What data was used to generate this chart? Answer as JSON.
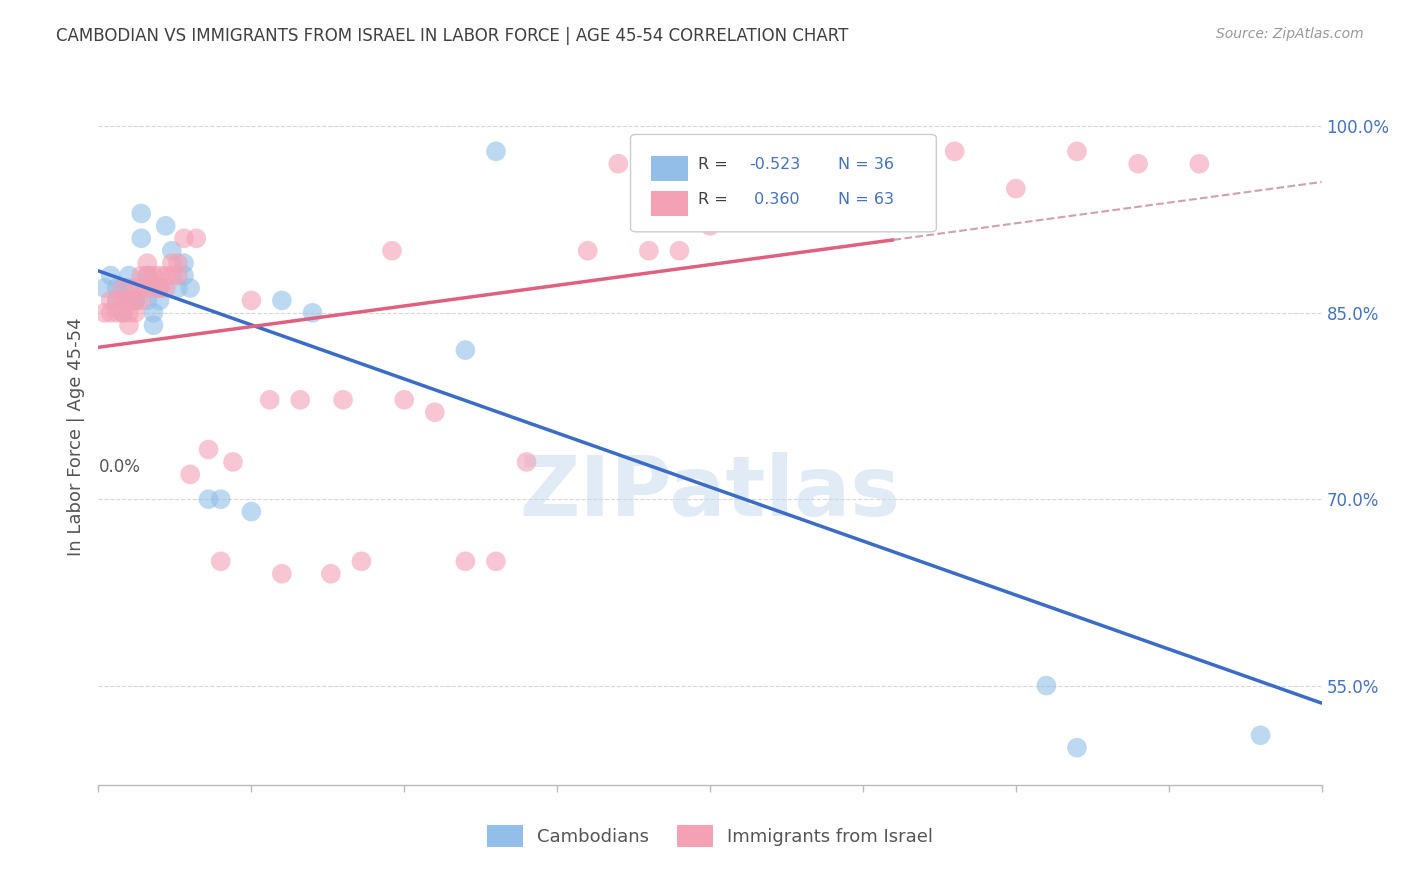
{
  "title": "CAMBODIAN VS IMMIGRANTS FROM ISRAEL IN LABOR FORCE | AGE 45-54 CORRELATION CHART",
  "source": "Source: ZipAtlas.com",
  "ylabel": "In Labor Force | Age 45-54",
  "right_ytick_vals": [
    1.0,
    0.85,
    0.7,
    0.55
  ],
  "right_ytick_labels": [
    "100.0%",
    "85.0%",
    "70.0%",
    "55.0%"
  ],
  "cambodian_color": "#92BEE8",
  "israel_color": "#F4A0B5",
  "blue_line_color": "#3A6CC8",
  "pink_line_color": "#E06080",
  "dashed_line_color": "#D0A0B0",
  "background_color": "#FFFFFF",
  "grid_color": "#CCCCCC",
  "title_color": "#404040",
  "right_axis_color": "#4472C4",
  "watermark_color": "#C8DCF0",
  "xlim": [
    0.0,
    0.2
  ],
  "ylim": [
    0.47,
    1.03
  ],
  "cambodian_x": [
    0.001,
    0.002,
    0.003,
    0.003,
    0.004,
    0.004,
    0.005,
    0.005,
    0.005,
    0.006,
    0.006,
    0.007,
    0.007,
    0.008,
    0.008,
    0.009,
    0.009,
    0.01,
    0.01,
    0.011,
    0.012,
    0.013,
    0.014,
    0.014,
    0.015,
    0.018,
    0.02,
    0.025,
    0.03,
    0.035,
    0.06,
    0.065,
    0.095,
    0.155,
    0.16,
    0.19
  ],
  "cambodian_y": [
    0.87,
    0.88,
    0.87,
    0.86,
    0.87,
    0.85,
    0.88,
    0.87,
    0.86,
    0.86,
    0.86,
    0.93,
    0.91,
    0.88,
    0.86,
    0.85,
    0.84,
    0.87,
    0.86,
    0.92,
    0.9,
    0.87,
    0.89,
    0.88,
    0.87,
    0.7,
    0.7,
    0.69,
    0.86,
    0.85,
    0.82,
    0.98,
    0.98,
    0.55,
    0.5,
    0.51
  ],
  "israel_x": [
    0.001,
    0.002,
    0.002,
    0.003,
    0.003,
    0.004,
    0.004,
    0.004,
    0.005,
    0.005,
    0.005,
    0.006,
    0.006,
    0.006,
    0.007,
    0.007,
    0.007,
    0.008,
    0.008,
    0.008,
    0.009,
    0.009,
    0.01,
    0.01,
    0.01,
    0.011,
    0.011,
    0.012,
    0.012,
    0.013,
    0.013,
    0.014,
    0.015,
    0.016,
    0.018,
    0.02,
    0.022,
    0.025,
    0.028,
    0.03,
    0.033,
    0.038,
    0.04,
    0.043,
    0.048,
    0.05,
    0.055,
    0.06,
    0.065,
    0.07,
    0.08,
    0.085,
    0.09,
    0.095,
    0.1,
    0.11,
    0.12,
    0.13,
    0.14,
    0.15,
    0.16,
    0.17,
    0.18
  ],
  "israel_y": [
    0.85,
    0.86,
    0.85,
    0.86,
    0.85,
    0.87,
    0.86,
    0.85,
    0.86,
    0.85,
    0.84,
    0.87,
    0.86,
    0.85,
    0.87,
    0.88,
    0.86,
    0.89,
    0.88,
    0.87,
    0.88,
    0.87,
    0.87,
    0.88,
    0.87,
    0.88,
    0.87,
    0.89,
    0.88,
    0.89,
    0.88,
    0.91,
    0.72,
    0.91,
    0.74,
    0.65,
    0.73,
    0.86,
    0.78,
    0.64,
    0.78,
    0.64,
    0.78,
    0.65,
    0.9,
    0.78,
    0.77,
    0.65,
    0.65,
    0.73,
    0.9,
    0.97,
    0.9,
    0.9,
    0.92,
    0.97,
    0.94,
    0.97,
    0.98,
    0.95,
    0.98,
    0.97,
    0.97
  ],
  "legend_r_blue": "-0.523",
  "legend_n_blue": "36",
  "legend_r_pink": "0.360",
  "legend_n_pink": "63",
  "bottom_legend_cambodians": "Cambodians",
  "bottom_legend_israel": "Immigrants from Israel"
}
